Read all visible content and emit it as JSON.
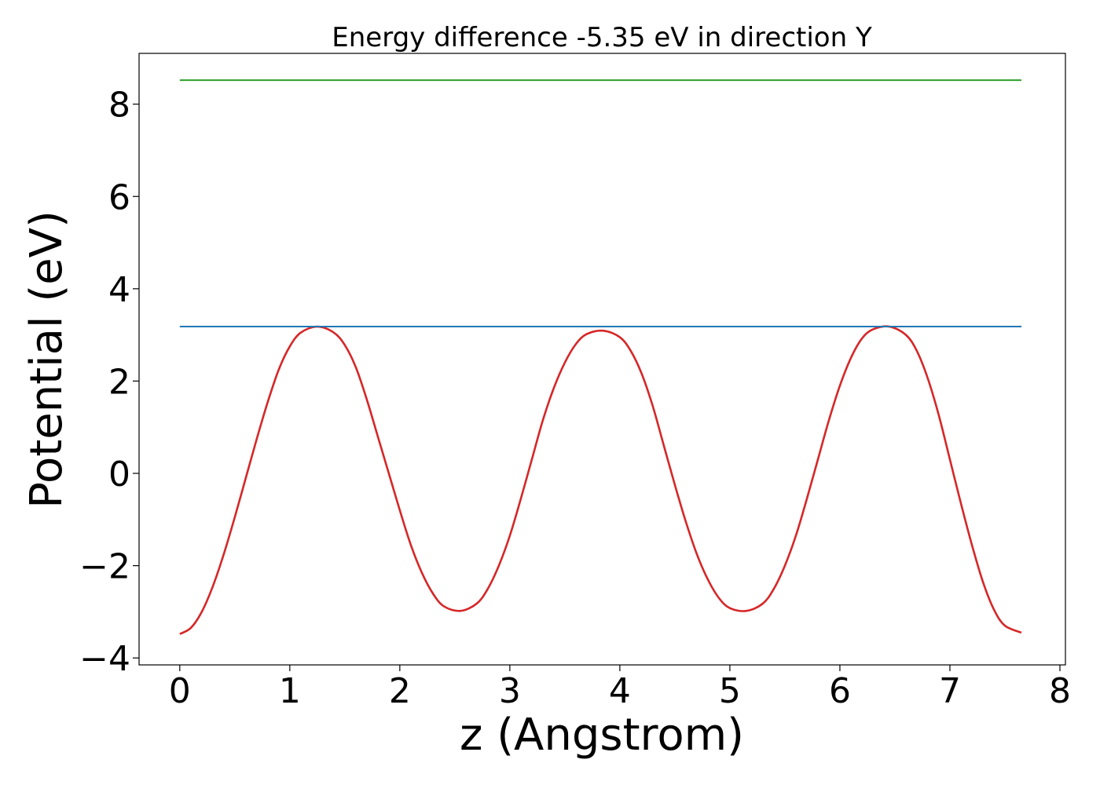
{
  "chart_data": {
    "type": "line",
    "title": "Energy difference -5.35 eV in direction Y",
    "xlabel": "z (Angstrom)",
    "ylabel": "Potential (eV)",
    "xlim": [
      -0.37,
      8.05
    ],
    "ylim": [
      -4.15,
      9.1
    ],
    "xticks": [
      0,
      1,
      2,
      3,
      4,
      5,
      6,
      7,
      8
    ],
    "xtick_labels": [
      "0",
      "1",
      "2",
      "3",
      "4",
      "5",
      "6",
      "7",
      "8"
    ],
    "yticks": [
      -4,
      -2,
      0,
      2,
      4,
      6,
      8
    ],
    "ytick_labels": [
      "−4",
      "−2",
      "0",
      "2",
      "4",
      "6",
      "8"
    ],
    "grid": false,
    "legend": "none",
    "series": [
      {
        "color": "#d62728",
        "style": "curve",
        "x": [
          0.0,
          0.1,
          0.2,
          0.3,
          0.4,
          0.5,
          0.6,
          0.7,
          0.8,
          0.9,
          1.0,
          1.1,
          1.25,
          1.4,
          1.5,
          1.6,
          1.7,
          1.8,
          1.9,
          2.0,
          2.1,
          2.2,
          2.3,
          2.4,
          2.55,
          2.7,
          2.8,
          2.9,
          3.0,
          3.1,
          3.2,
          3.3,
          3.4,
          3.5,
          3.6,
          3.7,
          3.85,
          4.0,
          4.1,
          4.2,
          4.3,
          4.4,
          4.5,
          4.6,
          4.7,
          4.8,
          4.9,
          5.0,
          5.15,
          5.3,
          5.4,
          5.5,
          5.6,
          5.7,
          5.8,
          5.9,
          6.0,
          6.1,
          6.2,
          6.3,
          6.45,
          6.6,
          6.7,
          6.8,
          6.9,
          7.0,
          7.1,
          7.2,
          7.3,
          7.4,
          7.5,
          7.65
        ],
        "y": [
          -3.48,
          -3.35,
          -3.0,
          -2.45,
          -1.75,
          -0.95,
          -0.1,
          0.75,
          1.55,
          2.25,
          2.75,
          3.05,
          3.18,
          3.05,
          2.78,
          2.3,
          1.6,
          0.8,
          0.0,
          -0.8,
          -1.55,
          -2.15,
          -2.6,
          -2.88,
          -2.98,
          -2.82,
          -2.5,
          -2.0,
          -1.35,
          -0.55,
          0.3,
          1.15,
          1.85,
          2.4,
          2.8,
          3.02,
          3.09,
          2.95,
          2.65,
          2.15,
          1.45,
          0.6,
          -0.25,
          -1.05,
          -1.75,
          -2.3,
          -2.7,
          -2.92,
          -2.98,
          -2.82,
          -2.5,
          -2.0,
          -1.35,
          -0.55,
          0.3,
          1.15,
          1.9,
          2.5,
          2.92,
          3.12,
          3.18,
          3.0,
          2.65,
          2.05,
          1.25,
          0.3,
          -0.65,
          -1.55,
          -2.35,
          -2.95,
          -3.3,
          -3.45
        ]
      },
      {
        "color": "#2ca02c",
        "style": "flat",
        "x": [
          0.0,
          7.65
        ],
        "y": [
          8.52,
          8.52
        ]
      },
      {
        "color": "#1f77b4",
        "style": "flat",
        "x": [
          0.0,
          7.65
        ],
        "y": [
          3.18,
          3.18
        ]
      }
    ]
  }
}
